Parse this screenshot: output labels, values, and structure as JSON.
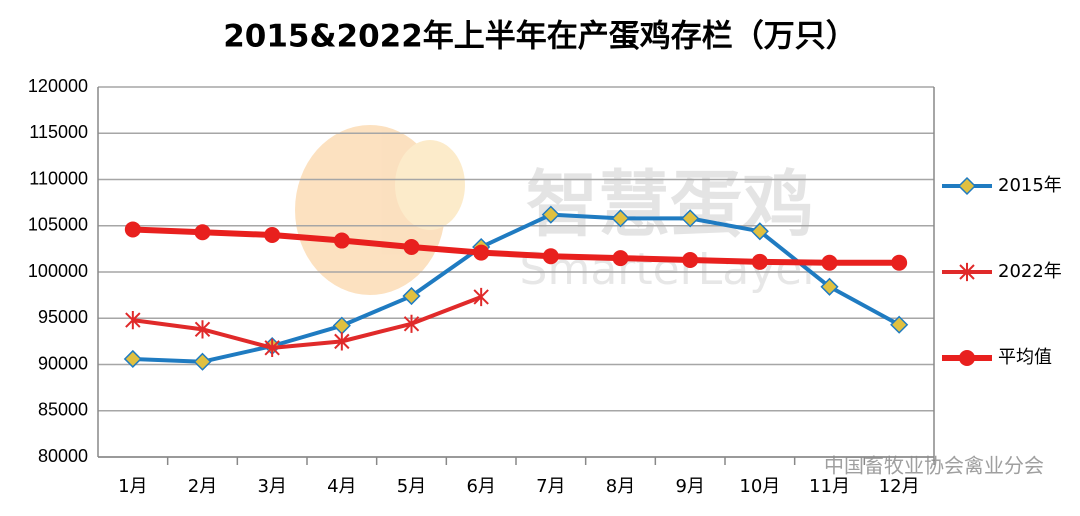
{
  "chart_data": {
    "type": "line",
    "title": "2015&2022年上半年在产蛋鸡存栏（万只）",
    "categories": [
      "1月",
      "2月",
      "3月",
      "4月",
      "5月",
      "6月",
      "7月",
      "8月",
      "9月",
      "10月",
      "11月",
      "12月"
    ],
    "series": [
      {
        "name": "2015年",
        "color": "#1f7bc1",
        "marker": "diamond",
        "values": [
          90600,
          90300,
          92000,
          94200,
          97400,
          102700,
          106200,
          105800,
          105800,
          104400,
          98400,
          94300
        ]
      },
      {
        "name": "2022年",
        "color": "#e02a2a",
        "marker": "asterisk",
        "values": [
          94800,
          93800,
          91800,
          92500,
          94400,
          97300,
          null,
          null,
          null,
          null,
          null,
          null
        ]
      },
      {
        "name": "平均值",
        "color": "#e8201e",
        "marker": "circle",
        "values": [
          104600,
          104300,
          104000,
          103400,
          102700,
          102100,
          101700,
          101500,
          101300,
          101100,
          101000,
          101000
        ]
      }
    ],
    "ylim": [
      80000,
      120000
    ],
    "yticks": [
      80000,
      85000,
      90000,
      95000,
      100000,
      105000,
      110000,
      115000,
      120000
    ],
    "grid": true,
    "legend": "right",
    "watermarks": [
      "智慧蛋鸡",
      "SmarterLayer",
      "中国畜牧业协会禽业分会"
    ]
  }
}
